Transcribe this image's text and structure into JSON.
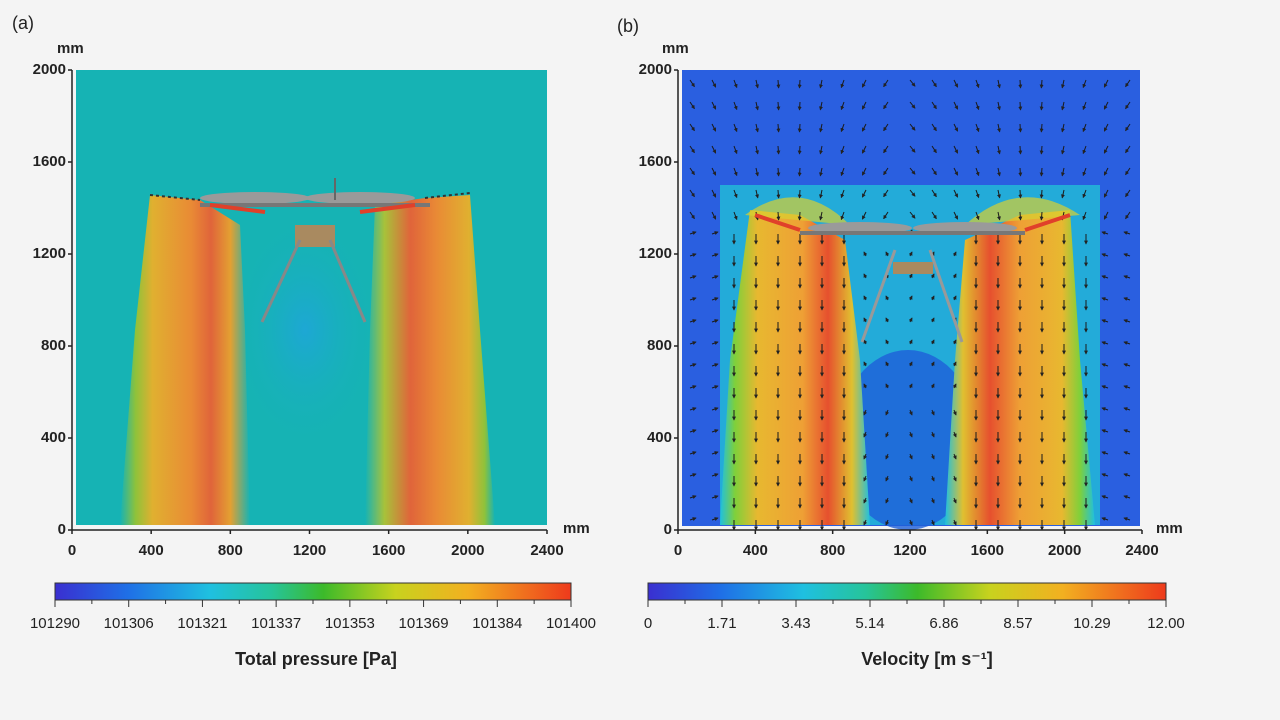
{
  "chart_data": [
    {
      "type": "heatmap",
      "panel_label": "(a)",
      "title": "",
      "quantity": "Total pressure [Pa]",
      "x_unit": "mm",
      "y_unit": "mm",
      "xlim": [
        0,
        2400
      ],
      "ylim": [
        0,
        2000
      ],
      "x_ticks": [
        "0",
        "400",
        "800",
        "1200",
        "1600",
        "2000",
        "2400"
      ],
      "y_ticks": [
        "0",
        "400",
        "800",
        "1200",
        "1600",
        "2000"
      ],
      "colorbar": {
        "range": [
          101290,
          101400
        ],
        "tick_labels": [
          "101290",
          "101306",
          "101321",
          "101337",
          "101353",
          "101369",
          "101384",
          "101400"
        ],
        "label": "Total pressure [Pa]"
      },
      "features": {
        "background_value_approx": 101330,
        "high_pressure_columns_x_mm": [
          [
            400,
            800
          ],
          [
            1600,
            2000
          ]
        ],
        "rotor_plane_y_mm": 1450,
        "low_pressure_region_center_x_mm": 1200
      }
    },
    {
      "type": "heatmap",
      "panel_label": "(b)",
      "title": "",
      "quantity": "Velocity [m s-1]",
      "x_unit": "mm",
      "y_unit": "mm",
      "xlim": [
        0,
        2400
      ],
      "ylim": [
        0,
        2000
      ],
      "x_ticks": [
        "0",
        "400",
        "800",
        "1200",
        "1600",
        "2000",
        "2400"
      ],
      "y_ticks": [
        "0",
        "400",
        "800",
        "1200",
        "1600",
        "2000"
      ],
      "colorbar": {
        "range": [
          0,
          12.0
        ],
        "tick_labels": [
          "0",
          "1.71",
          "3.43",
          "5.14",
          "6.86",
          "8.57",
          "10.29",
          "12.00"
        ],
        "label": "Velocity [m s⁻¹]"
      },
      "features": {
        "vector_arrows": true,
        "high_velocity_columns_x_mm": [
          [
            400,
            900
          ],
          [
            1600,
            2050
          ]
        ],
        "rotor_plane_y_mm": 1400,
        "max_velocity_approx": 12.0
      }
    }
  ],
  "colors": {
    "jet_scale": [
      "#2b2bd0",
      "#1e6ee8",
      "#18b4e6",
      "#1fc28c",
      "#3cbb2a",
      "#c8d41e",
      "#f0a020",
      "#ef4a1e"
    ]
  },
  "labels": {
    "a_tag": "(a)",
    "b_tag": "(b)",
    "unit": "mm"
  }
}
